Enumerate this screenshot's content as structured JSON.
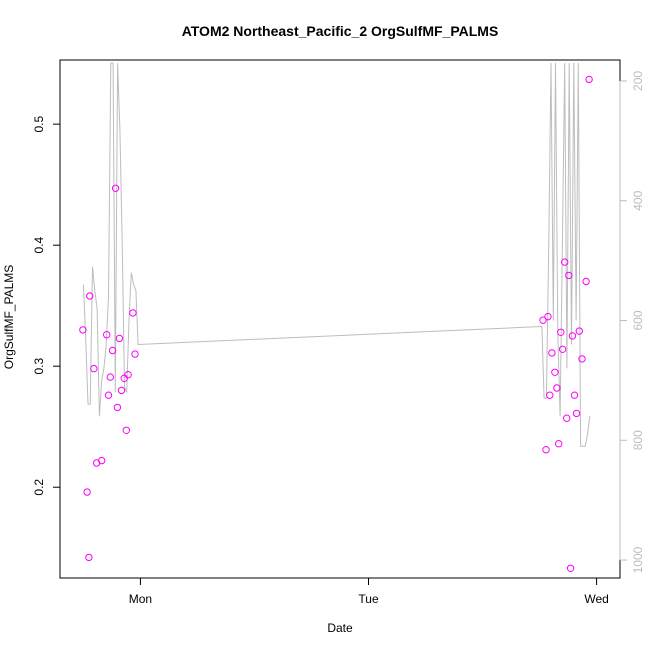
{
  "chart_data": {
    "type": "scatter",
    "title": "ATOM2 Northeast_Pacific_2 OrgSulfMF_PALMS",
    "xlabel": "Date",
    "ylabel": "OrgSulfMF_PALMS",
    "x_ticks": [
      "Mon",
      "Tue",
      "Wed"
    ],
    "x_tick_values": [
      0,
      1,
      2
    ],
    "xlim": [
      -0.3,
      2.05
    ],
    "ylim": [
      0.125,
      0.553
    ],
    "y_ticks": [
      0.2,
      0.3,
      0.4,
      0.5
    ],
    "y2_ticks": [
      200,
      400,
      600,
      800,
      1000
    ],
    "y2lim": [
      1030,
      165
    ],
    "y2_reversed": true,
    "grid": false,
    "legend": "none",
    "colors": {
      "points": "#ff00ff",
      "line": "#bdbdbd",
      "right_axis": "#bdbdbd"
    },
    "series": [
      {
        "type": "scatter",
        "points": [
          [
            -0.252,
            0.33
          ],
          [
            -0.234,
            0.196
          ],
          [
            -0.226,
            0.142
          ],
          [
            -0.222,
            0.358
          ],
          [
            -0.204,
            0.298
          ],
          [
            -0.192,
            0.22
          ],
          [
            -0.17,
            0.222
          ],
          [
            -0.148,
            0.326
          ],
          [
            -0.14,
            0.276
          ],
          [
            -0.132,
            0.291
          ],
          [
            -0.122,
            0.313
          ],
          [
            -0.109,
            0.447
          ],
          [
            -0.101,
            0.266
          ],
          [
            -0.092,
            0.323
          ],
          [
            -0.083,
            0.28
          ],
          [
            -0.071,
            0.29
          ],
          [
            -0.062,
            0.247
          ],
          [
            -0.054,
            0.293
          ],
          [
            -0.033,
            0.344
          ],
          [
            -0.024,
            0.31
          ],
          [
            1.765,
            0.338
          ],
          [
            1.778,
            0.231
          ],
          [
            1.787,
            0.341
          ],
          [
            1.795,
            0.276
          ],
          [
            1.804,
            0.311
          ],
          [
            1.817,
            0.295
          ],
          [
            1.826,
            0.282
          ],
          [
            1.834,
            0.236
          ],
          [
            1.843,
            0.328
          ],
          [
            1.851,
            0.314
          ],
          [
            1.86,
            0.386
          ],
          [
            1.869,
            0.257
          ],
          [
            1.878,
            0.375
          ],
          [
            1.886,
            0.133
          ],
          [
            1.894,
            0.325
          ],
          [
            1.903,
            0.276
          ],
          [
            1.912,
            0.261
          ],
          [
            1.924,
            0.329
          ],
          [
            1.936,
            0.306
          ],
          [
            1.954,
            0.37
          ],
          [
            1.967,
            0.537
          ]
        ]
      },
      {
        "type": "line",
        "axis": "right",
        "points": [
          [
            -0.25,
            540
          ],
          [
            -0.24,
            630
          ],
          [
            -0.23,
            740
          ],
          [
            -0.22,
            740
          ],
          [
            -0.21,
            510
          ],
          [
            -0.2,
            550
          ],
          [
            -0.19,
            580
          ],
          [
            -0.18,
            760
          ],
          [
            -0.17,
            700
          ],
          [
            -0.16,
            680
          ],
          [
            -0.15,
            640
          ],
          [
            -0.14,
            560
          ],
          [
            -0.13,
            170
          ],
          [
            -0.12,
            170
          ],
          [
            -0.11,
            720
          ],
          [
            -0.1,
            170
          ],
          [
            -0.09,
            280
          ],
          [
            -0.08,
            470
          ],
          [
            -0.07,
            710
          ],
          [
            -0.06,
            720
          ],
          [
            -0.05,
            600
          ],
          [
            -0.04,
            520
          ],
          [
            -0.03,
            540
          ],
          [
            -0.02,
            550
          ],
          [
            -0.01,
            640
          ],
          [
            1.76,
            610
          ],
          [
            1.77,
            730
          ],
          [
            1.78,
            730
          ],
          [
            1.79,
            480
          ],
          [
            1.8,
            170
          ],
          [
            1.81,
            600
          ],
          [
            1.82,
            170
          ],
          [
            1.83,
            620
          ],
          [
            1.84,
            760
          ],
          [
            1.85,
            470
          ],
          [
            1.86,
            170
          ],
          [
            1.87,
            680
          ],
          [
            1.88,
            170
          ],
          [
            1.89,
            640
          ],
          [
            1.9,
            170
          ],
          [
            1.91,
            600
          ],
          [
            1.92,
            170
          ],
          [
            1.93,
            810
          ],
          [
            1.94,
            810
          ],
          [
            1.95,
            810
          ],
          [
            1.96,
            790
          ],
          [
            1.97,
            760
          ]
        ]
      }
    ]
  }
}
